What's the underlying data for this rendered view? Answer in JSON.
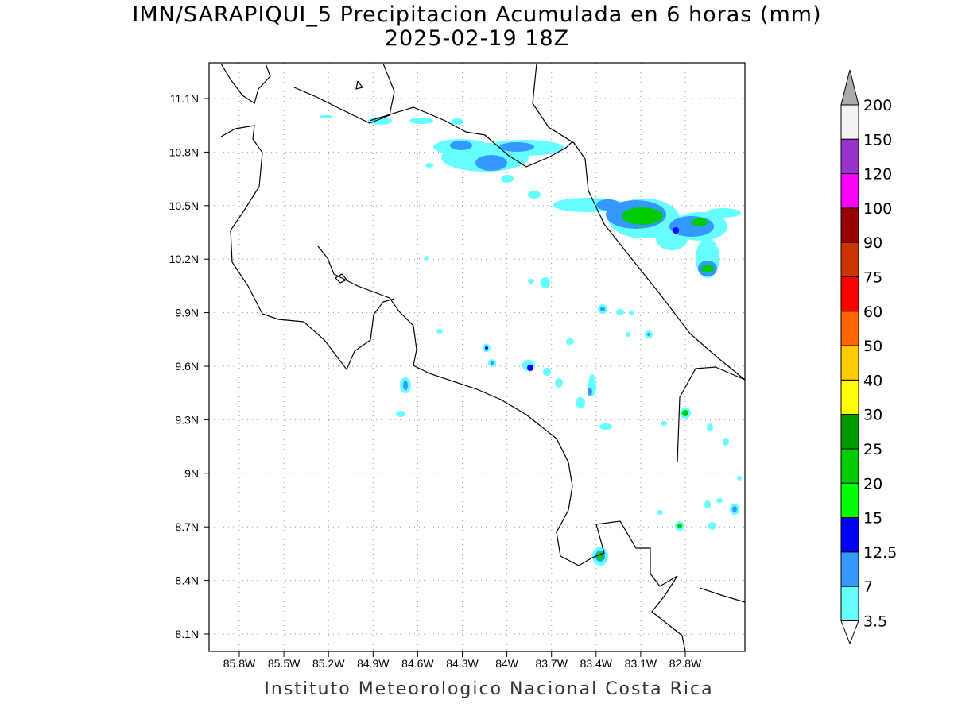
{
  "title": {
    "line1": "IMN/SARAPIQUI_5 Precipitacion Acumulada en 6 horas (mm)",
    "line2": "2025-02-19 18Z"
  },
  "lat_ticks": [
    "11.1N",
    "10.8N",
    "10.5N",
    "10.2N",
    "9.9N",
    "9.6N",
    "9.3N",
    "9N",
    "8.7N",
    "8.4N",
    "8.1N"
  ],
  "lon_ticks": [
    "85.8W",
    "85.5W",
    "85.2W",
    "84.9W",
    "84.6W",
    "84.3W",
    "84W",
    "83.7W",
    "83.4W",
    "83.1W",
    "82.8W"
  ],
  "colorbar": {
    "labels": [
      "200",
      "150",
      "120",
      "100",
      "90",
      "75",
      "60",
      "50",
      "40",
      "30",
      "25",
      "20",
      "15",
      "12.5",
      "7",
      "3.5"
    ],
    "colors": [
      "#f3f3f3",
      "#9933cc",
      "#ff00ff",
      "#990000",
      "#cc3300",
      "#ff0000",
      "#ff6600",
      "#ffcc00",
      "#ffff00",
      "#009900",
      "#00cc00",
      "#00ff00",
      "#0000ff",
      "#3399ff",
      "#66ffff"
    ],
    "over_color": "#aaaaaa",
    "under_color": "#ffffff"
  },
  "footer": "Instituto Meteorologico Nacional Costa Rica"
}
